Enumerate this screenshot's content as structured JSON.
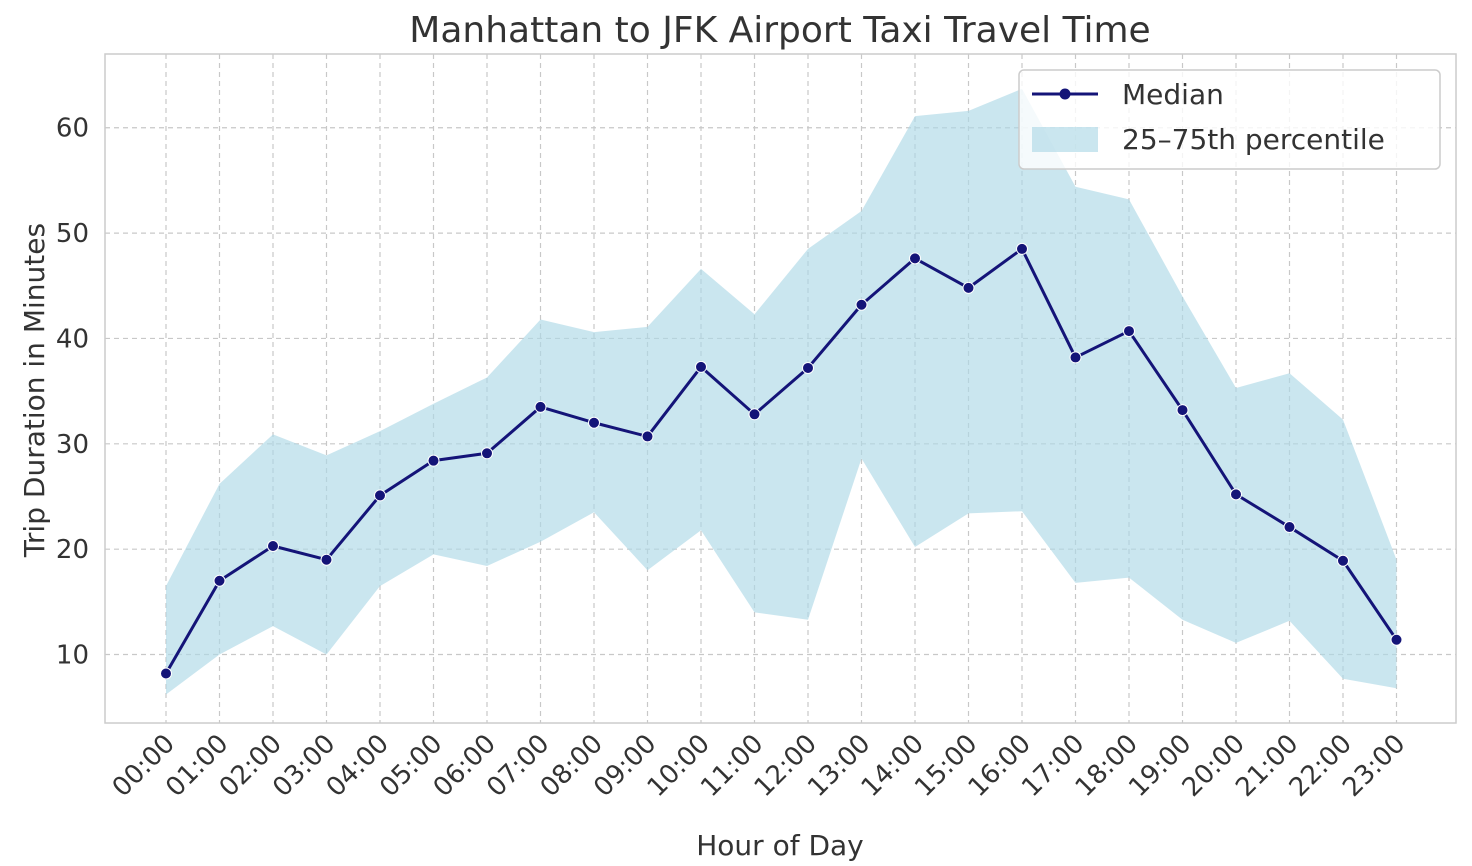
{
  "chart_data": {
    "type": "line",
    "title": "Manhattan to JFK Airport Taxi Travel Time",
    "xlabel": "Hour of Day",
    "ylabel": "Trip Duration in Minutes",
    "categories": [
      "00:00",
      "01:00",
      "02:00",
      "03:00",
      "04:00",
      "05:00",
      "06:00",
      "07:00",
      "08:00",
      "09:00",
      "10:00",
      "11:00",
      "12:00",
      "13:00",
      "14:00",
      "15:00",
      "16:00",
      "17:00",
      "18:00",
      "19:00",
      "20:00",
      "21:00",
      "22:00",
      "23:00"
    ],
    "ylim": [
      3.5,
      67
    ],
    "yticks": [
      10,
      20,
      30,
      40,
      50,
      60
    ],
    "grid": true,
    "legend_position": "top-right",
    "series": [
      {
        "name": "Median",
        "type": "line",
        "color": "#141478",
        "values": [
          8.2,
          17.0,
          20.3,
          19.0,
          25.1,
          28.4,
          29.1,
          33.5,
          32.0,
          30.7,
          37.3,
          32.8,
          37.2,
          43.2,
          47.6,
          44.8,
          48.5,
          38.2,
          40.7,
          33.2,
          25.2,
          22.1,
          18.9,
          11.4
        ]
      },
      {
        "name": "25–75th percentile",
        "type": "band",
        "color": "#add8e6",
        "lower": [
          6.2,
          10.0,
          12.7,
          10.0,
          16.5,
          19.5,
          18.4,
          20.7,
          23.5,
          18.0,
          21.8,
          14.0,
          13.3,
          28.6,
          20.2,
          23.4,
          23.6,
          16.8,
          17.3,
          13.3,
          11.1,
          13.2,
          7.7,
          6.8
        ],
        "upper": [
          16.5,
          26.2,
          30.9,
          28.9,
          31.2,
          33.8,
          36.3,
          41.8,
          40.6,
          41.1,
          46.6,
          42.3,
          48.5,
          52.1,
          61.1,
          61.6,
          63.7,
          54.4,
          53.2,
          44.0,
          35.3,
          36.7,
          32.3,
          19.0
        ]
      }
    ]
  }
}
